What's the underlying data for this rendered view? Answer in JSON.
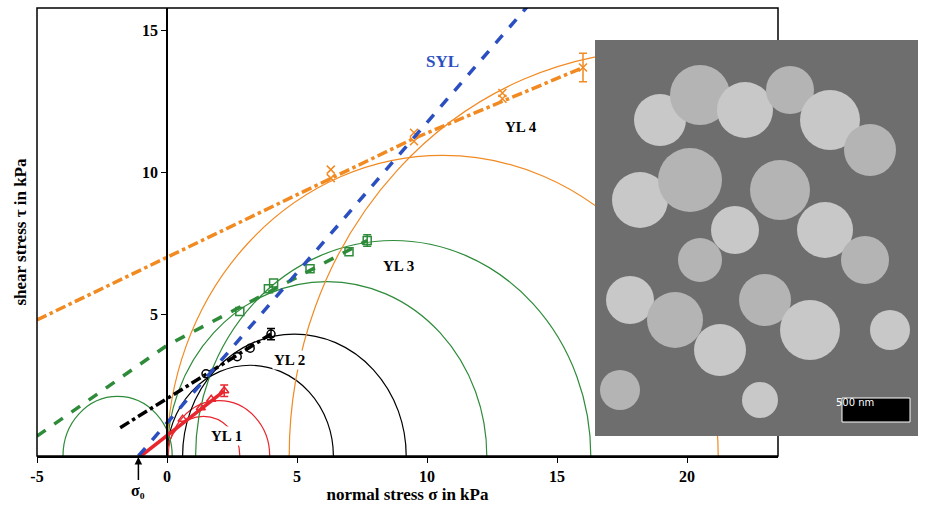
{
  "chart_data": {
    "type": "scatter",
    "xlabel": "normal stress σ in kPa",
    "ylabel": "shear stress τ in kPa",
    "xlim": [
      -5,
      23.5
    ],
    "ylim": [
      0,
      15.8
    ],
    "xticks": [
      -5,
      0,
      5,
      10,
      15,
      20
    ],
    "yticks": [
      5,
      10,
      15
    ],
    "grid": false,
    "series": [
      {
        "name": "YL 1",
        "color": "#e8262e",
        "marker": "triangle-up-open",
        "line_style": "solid",
        "x": [
          0.6,
          1.3,
          1.7,
          2.2
        ],
        "values": [
          1.3,
          1.7,
          2.0,
          2.3
        ],
        "errors": [
          null,
          null,
          null,
          0.2
        ],
        "locus": {
          "x": [
            -1.0,
            2.2
          ],
          "values": [
            0,
            2.3
          ]
        },
        "mohr_circles": [
          {
            "center": 2.0,
            "radius": 1.95
          },
          {
            "center": 1.4,
            "radius": 1.4
          }
        ],
        "label_at": [
          2.3,
          0.7
        ]
      },
      {
        "name": "YL 2",
        "color": "#000000",
        "marker": "circle-open",
        "line_style": "dashdot",
        "x": [
          1.5,
          2.7,
          3.2,
          4.0
        ],
        "values": [
          2.9,
          3.5,
          3.8,
          4.3
        ],
        "errors": [
          null,
          null,
          null,
          0.2
        ],
        "locus": {
          "x": [
            -1.8,
            4.0
          ],
          "values": [
            1.0,
            4.3
          ]
        },
        "mohr_circles": [
          {
            "center": 4.9,
            "radius": 4.3
          },
          {
            "center": 3.2,
            "radius": 3.2
          }
        ],
        "label_at": [
          4.7,
          3.4
        ]
      },
      {
        "name": "YL 3",
        "color": "#2e8b3a",
        "marker": "square-open",
        "line_style": "dash",
        "x": [
          2.8,
          3.9,
          4.1,
          5.5,
          7.0,
          7.7
        ],
        "values": [
          5.1,
          5.9,
          6.1,
          6.6,
          7.2,
          7.6
        ],
        "errors": [
          null,
          null,
          null,
          null,
          null,
          0.2
        ],
        "locus": {
          "x": [
            -5,
            0,
            7.7
          ],
          "values": [
            0.7,
            3.9,
            7.6
          ]
        },
        "mohr_circles": [
          {
            "center": 8.7,
            "radius": 7.6
          },
          {
            "center": 6.15,
            "radius": 6.15
          },
          {
            "center": -1.9,
            "radius": 2.1
          }
        ],
        "label_at": [
          8.9,
          6.7
        ]
      },
      {
        "name": "YL 4",
        "color": "#f28a22",
        "marker": "x-thin-open",
        "line_style": "dashdot",
        "x": [
          6.3,
          6.3,
          9.5,
          9.5,
          12.9,
          12.9,
          16.0
        ],
        "values": [
          9.8,
          10.1,
          11.1,
          11.4,
          12.6,
          12.8,
          13.7
        ],
        "errors": [
          null,
          null,
          null,
          null,
          null,
          null,
          0.5
        ],
        "locus": {
          "x": [
            -5,
            0,
            9.5,
            16.0
          ],
          "values": [
            4.8,
            7.0,
            11.2,
            13.7
          ]
        },
        "mohr_circles": [
          {
            "center": 19.0,
            "radius": 14.3
          },
          {
            "center": 10.6,
            "radius": 10.6
          }
        ],
        "label_at": [
          13.6,
          11.6
        ]
      }
    ],
    "lines": [
      {
        "name": "SYL",
        "color": "#2b4fc0",
        "line_style": "dash",
        "x": [
          -1.1,
          14.0
        ],
        "values": [
          0,
          16.0
        ],
        "label_at": [
          10.6,
          13.9
        ]
      }
    ],
    "annotations": [
      {
        "text": "σ₀",
        "x": -1.1,
        "y": 0
      }
    ],
    "inset_label": "500 nm"
  }
}
